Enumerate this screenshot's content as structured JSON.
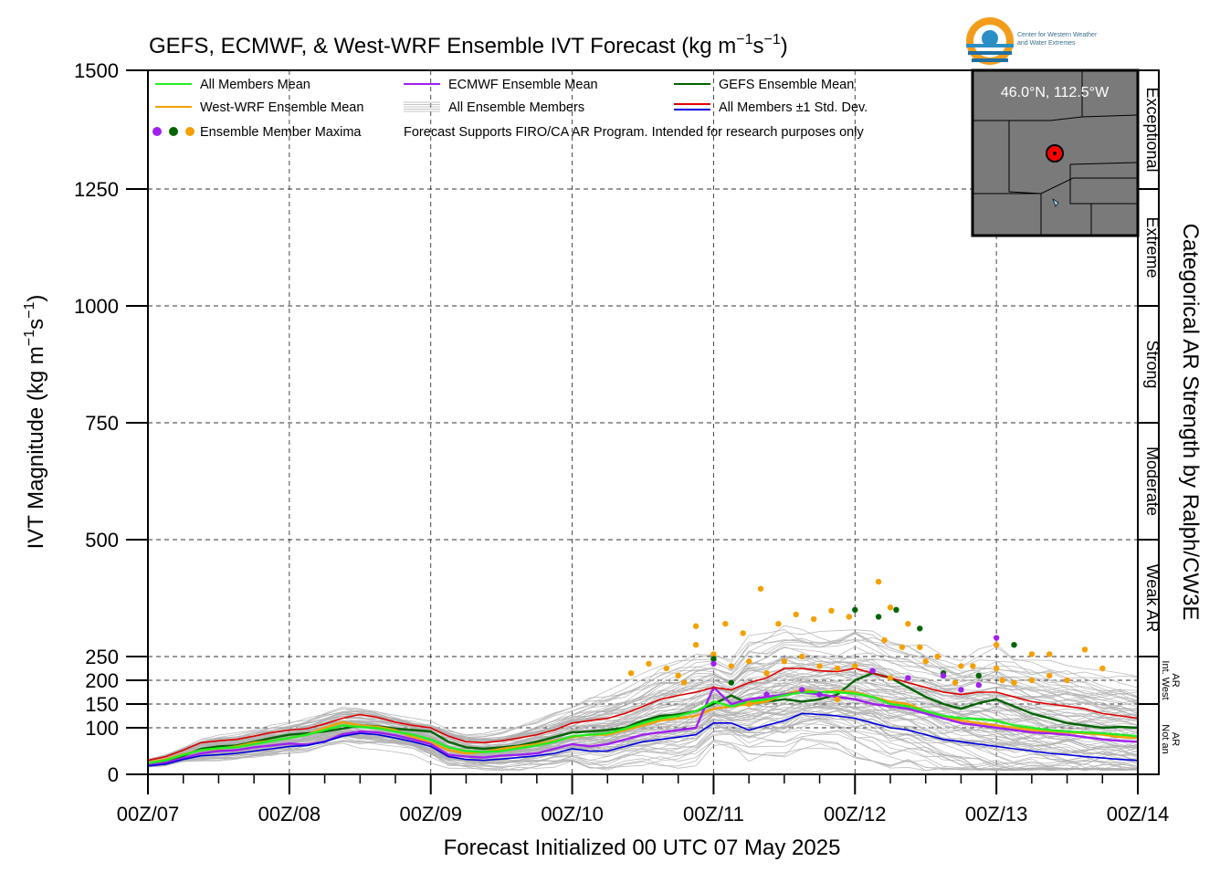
{
  "header": {
    "title_base": "GEFS, ECMWF, & West-WRF Ensemble IVT Forecast (kg m",
    "title_exp1": "−1",
    "title_mid": "s",
    "title_exp2": "−1",
    "title_end": ")"
  },
  "logo": {
    "line1": "Center for Western Weather",
    "line2": "and Water Extremes"
  },
  "inset_map": {
    "location_label": "46.0°N, 112.5°W"
  },
  "colors": {
    "all_members_mean": "#22ee22",
    "west_wrf_mean": "#f5a000",
    "ecmwf_mean": "#a020f0",
    "gefs_mean": "#006400",
    "std_upper": "#e00000",
    "std_lower": "#0000e0",
    "members": "#b0b0b0"
  },
  "chart_data": {
    "type": "line",
    "title": "GEFS, ECMWF, & West-WRF Ensemble IVT Forecast (kg m−1s−1)",
    "xlabel": "Forecast Initialized 00 UTC 07 May 2025",
    "ylabel_base": "IVT Magnitude (kg m",
    "ylabel_exp1": "−1",
    "ylabel_mid": "s",
    "ylabel_exp2": "−1",
    "ylabel_end": ")",
    "right_label": "Categorical AR Strength by Ralph/CW3E",
    "x_unit": "forecast hours",
    "xlim": [
      0,
      168
    ],
    "ylim": [
      0,
      1500
    ],
    "grid": true,
    "x_ticks": [
      {
        "value": 0,
        "label": "00Z/07"
      },
      {
        "value": 24,
        "label": "00Z/08"
      },
      {
        "value": 48,
        "label": "00Z/09"
      },
      {
        "value": 72,
        "label": "00Z/10"
      },
      {
        "value": 96,
        "label": "00Z/11"
      },
      {
        "value": 120,
        "label": "00Z/12"
      },
      {
        "value": 144,
        "label": "00Z/13"
      },
      {
        "value": 168,
        "label": "00Z/14"
      }
    ],
    "y_ticks": [
      0,
      100,
      150,
      200,
      250,
      500,
      750,
      1000,
      1250,
      1500
    ],
    "category_bands": [
      {
        "label": "Exceptional",
        "from": 1250,
        "to": 1500
      },
      {
        "label": "Extreme",
        "from": 1000,
        "to": 1250
      },
      {
        "label": "Strong",
        "from": 750,
        "to": 1000
      },
      {
        "label": "Moderate",
        "from": 500,
        "to": 750
      },
      {
        "label": "Weak AR",
        "from": 250,
        "to": 500
      },
      {
        "label": "Int. West AR",
        "from": 150,
        "to": 250
      },
      {
        "label": "Not an AR",
        "from": 0,
        "to": 150
      }
    ],
    "legend": [
      {
        "label": "All Members Mean",
        "kind": "line",
        "color": "#22ee22"
      },
      {
        "label": "ECMWF Ensemble Mean",
        "kind": "line",
        "color": "#a020f0"
      },
      {
        "label": "GEFS Ensemble Mean",
        "kind": "line",
        "color": "#006400"
      },
      {
        "label": "West-WRF Ensemble Mean",
        "kind": "line",
        "color": "#f5a000"
      },
      {
        "label": "All Ensemble Members",
        "kind": "lines",
        "color": "#b0b0b0"
      },
      {
        "label": "All Members ±1 Std. Dev.",
        "kind": "redblue",
        "color": "#e00000"
      },
      {
        "label": "Ensemble Member Maxima",
        "kind": "dots",
        "color": "#f5a000"
      },
      {
        "label": "Forecast Supports FIRO/CA AR Program. Intended for research purposes only",
        "kind": "note",
        "color": "#000000"
      }
    ],
    "legend_position": "top-left",
    "x": [
      0,
      3,
      6,
      9,
      12,
      15,
      18,
      21,
      24,
      27,
      30,
      33,
      36,
      39,
      42,
      45,
      48,
      51,
      54,
      57,
      60,
      63,
      66,
      69,
      72,
      75,
      78,
      81,
      84,
      87,
      90,
      93,
      96,
      99,
      102,
      105,
      108,
      111,
      114,
      117,
      120,
      123,
      126,
      129,
      132,
      135,
      138,
      141,
      144,
      147,
      150,
      153,
      156,
      159,
      162,
      165,
      168
    ],
    "series": [
      {
        "name": "GEFS Ensemble Mean",
        "color": "#006400",
        "values": [
          22,
          28,
          40,
          55,
          60,
          62,
          70,
          78,
          85,
          88,
          92,
          98,
          105,
          103,
          98,
          95,
          92,
          70,
          58,
          55,
          58,
          62,
          70,
          80,
          90,
          92,
          95,
          100,
          115,
          125,
          128,
          135,
          150,
          168,
          150,
          155,
          160,
          155,
          160,
          170,
          200,
          215,
          205,
          185,
          165,
          150,
          140,
          152,
          160,
          145,
          130,
          120,
          110,
          105,
          100,
          102,
          100
        ]
      },
      {
        "name": "West-WRF Ensemble Mean",
        "color": "#f5a000",
        "values": [
          25,
          32,
          43,
          52,
          55,
          60,
          68,
          72,
          78,
          85,
          100,
          112,
          105,
          102,
          95,
          80,
          68,
          52,
          45,
          48,
          55,
          60,
          65,
          72,
          80,
          85,
          85,
          95,
          105,
          115,
          120,
          125,
          140,
          145,
          150,
          155,
          170,
          180,
          175,
          178,
          175,
          165,
          155,
          150,
          135,
          125,
          115,
          110,
          105,
          100,
          95,
          92,
          90,
          88,
          85,
          80,
          78
        ]
      },
      {
        "name": "ECMWF Ensemble Mean",
        "color": "#a020f0",
        "values": [
          20,
          25,
          35,
          45,
          50,
          52,
          58,
          62,
          66,
          64,
          70,
          86,
          92,
          90,
          84,
          75,
          65,
          42,
          38,
          36,
          40,
          42,
          45,
          55,
          65,
          60,
          65,
          75,
          85,
          90,
          95,
          100,
          185,
          150,
          160,
          165,
          170,
          175,
          170,
          165,
          160,
          150,
          145,
          140,
          130,
          120,
          110,
          105,
          100,
          95,
          90,
          88,
          85,
          80,
          75,
          72,
          70
        ]
      },
      {
        "name": "All Members Mean",
        "color": "#22ee22",
        "values": [
          24,
          30,
          42,
          52,
          56,
          58,
          65,
          72,
          78,
          85,
          95,
          105,
          102,
          99,
          92,
          85,
          75,
          58,
          50,
          48,
          50,
          56,
          62,
          70,
          82,
          85,
          88,
          98,
          110,
          120,
          125,
          135,
          155,
          145,
          155,
          160,
          168,
          175,
          175,
          175,
          172,
          165,
          150,
          145,
          135,
          125,
          120,
          118,
          115,
          105,
          100,
          95,
          92,
          90,
          88,
          85,
          82
        ]
      },
      {
        "name": "All Members +1 Std. Dev.",
        "color": "#e00000",
        "values": [
          30,
          38,
          52,
          68,
          72,
          75,
          82,
          90,
          95,
          98,
          108,
          120,
          128,
          122,
          112,
          105,
          100,
          82,
          70,
          68,
          72,
          78,
          85,
          95,
          110,
          115,
          120,
          130,
          145,
          160,
          168,
          175,
          185,
          180,
          195,
          205,
          225,
          225,
          220,
          218,
          225,
          215,
          205,
          195,
          185,
          175,
          170,
          175,
          175,
          165,
          155,
          150,
          145,
          140,
          130,
          125,
          120
        ]
      },
      {
        "name": "All Members −1 Std. Dev.",
        "color": "#0000e0",
        "values": [
          18,
          22,
          32,
          40,
          42,
          45,
          50,
          55,
          60,
          62,
          70,
          82,
          88,
          85,
          78,
          70,
          60,
          38,
          32,
          30,
          33,
          36,
          40,
          45,
          55,
          50,
          50,
          60,
          70,
          75,
          80,
          85,
          110,
          110,
          95,
          105,
          115,
          130,
          128,
          125,
          120,
          110,
          100,
          95,
          85,
          75,
          70,
          65,
          60,
          55,
          50,
          45,
          42,
          38,
          35,
          32,
          30
        ]
      }
    ],
    "member_maxima": [
      {
        "x": 126,
        "y": 355,
        "color": "#f5a000"
      },
      {
        "x": 124,
        "y": 335,
        "color": "#006400"
      },
      {
        "x": 110,
        "y": 340,
        "color": "#f5a000"
      },
      {
        "x": 113,
        "y": 330,
        "color": "#f5a000"
      },
      {
        "x": 116,
        "y": 348,
        "color": "#f5a000"
      },
      {
        "x": 119,
        "y": 335,
        "color": "#f5a000"
      },
      {
        "x": 104,
        "y": 395,
        "color": "#f5a000"
      },
      {
        "x": 107,
        "y": 320,
        "color": "#f5a000"
      },
      {
        "x": 98,
        "y": 320,
        "color": "#f5a000"
      },
      {
        "x": 93,
        "y": 315,
        "color": "#f5a000"
      },
      {
        "x": 120,
        "y": 350,
        "color": "#006400"
      },
      {
        "x": 127,
        "y": 350,
        "color": "#006400"
      },
      {
        "x": 129,
        "y": 320,
        "color": "#f5a000"
      },
      {
        "x": 131,
        "y": 310,
        "color": "#006400"
      },
      {
        "x": 101,
        "y": 300,
        "color": "#f5a000"
      },
      {
        "x": 124,
        "y": 410,
        "color": "#f5a000"
      },
      {
        "x": 125,
        "y": 285,
        "color": "#f5a000"
      },
      {
        "x": 128,
        "y": 270,
        "color": "#f5a000"
      },
      {
        "x": 131,
        "y": 270,
        "color": "#f5a000"
      },
      {
        "x": 132,
        "y": 240,
        "color": "#f5a000"
      },
      {
        "x": 134,
        "y": 250,
        "color": "#f5a000"
      },
      {
        "x": 135,
        "y": 215,
        "color": "#006400"
      },
      {
        "x": 137,
        "y": 195,
        "color": "#f5a000"
      },
      {
        "x": 138,
        "y": 230,
        "color": "#f5a000"
      },
      {
        "x": 140,
        "y": 230,
        "color": "#f5a000"
      },
      {
        "x": 141,
        "y": 210,
        "color": "#006400"
      },
      {
        "x": 147,
        "y": 275,
        "color": "#006400"
      },
      {
        "x": 144,
        "y": 290,
        "color": "#a020f0"
      },
      {
        "x": 144,
        "y": 275,
        "color": "#f5a000"
      },
      {
        "x": 150,
        "y": 255,
        "color": "#f5a000"
      },
      {
        "x": 153,
        "y": 255,
        "color": "#f5a000"
      },
      {
        "x": 159,
        "y": 265,
        "color": "#f5a000"
      },
      {
        "x": 162,
        "y": 225,
        "color": "#f5a000"
      },
      {
        "x": 144,
        "y": 225,
        "color": "#f5a000"
      },
      {
        "x": 145,
        "y": 200,
        "color": "#f5a000"
      },
      {
        "x": 147,
        "y": 195,
        "color": "#f5a000"
      },
      {
        "x": 150,
        "y": 200,
        "color": "#f5a000"
      },
      {
        "x": 153,
        "y": 210,
        "color": "#f5a000"
      },
      {
        "x": 156,
        "y": 200,
        "color": "#f5a000"
      },
      {
        "x": 82,
        "y": 215,
        "color": "#f5a000"
      },
      {
        "x": 85,
        "y": 235,
        "color": "#f5a000"
      },
      {
        "x": 88,
        "y": 225,
        "color": "#f5a000"
      },
      {
        "x": 91,
        "y": 195,
        "color": "#f5a000"
      },
      {
        "x": 96,
        "y": 255,
        "color": "#f5a000"
      },
      {
        "x": 96,
        "y": 245,
        "color": "#006400"
      },
      {
        "x": 96,
        "y": 235,
        "color": "#a020f0"
      },
      {
        "x": 99,
        "y": 230,
        "color": "#f5a000"
      },
      {
        "x": 102,
        "y": 240,
        "color": "#f5a000"
      },
      {
        "x": 105,
        "y": 215,
        "color": "#f5a000"
      },
      {
        "x": 108,
        "y": 240,
        "color": "#f5a000"
      },
      {
        "x": 111,
        "y": 250,
        "color": "#f5a000"
      },
      {
        "x": 114,
        "y": 230,
        "color": "#f5a000"
      },
      {
        "x": 117,
        "y": 225,
        "color": "#f5a000"
      },
      {
        "x": 120,
        "y": 230,
        "color": "#f5a000"
      },
      {
        "x": 123,
        "y": 220,
        "color": "#a020f0"
      },
      {
        "x": 126,
        "y": 205,
        "color": "#f5a000"
      },
      {
        "x": 129,
        "y": 205,
        "color": "#a020f0"
      },
      {
        "x": 138,
        "y": 180,
        "color": "#a020f0"
      },
      {
        "x": 141,
        "y": 190,
        "color": "#a020f0"
      },
      {
        "x": 135,
        "y": 210,
        "color": "#a020f0"
      },
      {
        "x": 102,
        "y": 150,
        "color": "#f5a000"
      },
      {
        "x": 105,
        "y": 170,
        "color": "#a020f0"
      },
      {
        "x": 111,
        "y": 180,
        "color": "#a020f0"
      },
      {
        "x": 114,
        "y": 170,
        "color": "#a020f0"
      },
      {
        "x": 117,
        "y": 160,
        "color": "#f5a000"
      },
      {
        "x": 99,
        "y": 195,
        "color": "#006400"
      },
      {
        "x": 90,
        "y": 210,
        "color": "#f5a000"
      },
      {
        "x": 93,
        "y": 275,
        "color": "#f5a000"
      }
    ]
  }
}
